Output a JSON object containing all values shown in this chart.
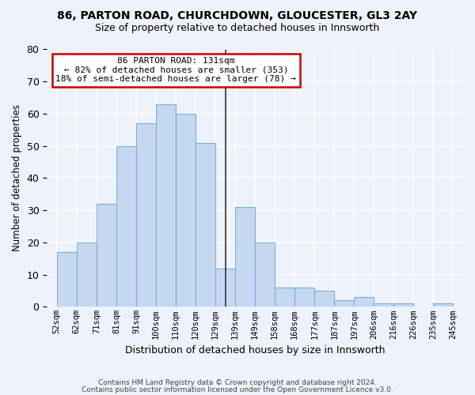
{
  "title_line1": "86, PARTON ROAD, CHURCHDOWN, GLOUCESTER, GL3 2AY",
  "title_line2": "Size of property relative to detached houses in Innsworth",
  "xlabel": "Distribution of detached houses by size in Innsworth",
  "ylabel": "Number of detached properties",
  "tick_labels": [
    "52sqm",
    "62sqm",
    "71sqm",
    "81sqm",
    "91sqm",
    "100sqm",
    "110sqm",
    "120sqm",
    "129sqm",
    "139sqm",
    "149sqm",
    "158sqm",
    "168sqm",
    "177sqm",
    "187sqm",
    "197sqm",
    "206sqm",
    "216sqm",
    "226sqm",
    "235sqm",
    "245sqm"
  ],
  "bar_heights": [
    17,
    20,
    32,
    50,
    57,
    63,
    60,
    51,
    12,
    31,
    20,
    6,
    6,
    5,
    2,
    3,
    1,
    1,
    0,
    1
  ],
  "bar_color": "#c5d8f0",
  "bar_edge_color": "#7ab0d8",
  "vline_color": "#333333",
  "annotation_text": "86 PARTON ROAD: 131sqm\n← 82% of detached houses are smaller (353)\n18% of semi-detached houses are larger (78) →",
  "annotation_box_color": "#ffffff",
  "annotation_box_edge": "#cc0000",
  "ylim": [
    0,
    80
  ],
  "yticks": [
    0,
    10,
    20,
    30,
    40,
    50,
    60,
    70,
    80
  ],
  "bg_color": "#eef2fa",
  "grid_color": "#ffffff",
  "footer_line1": "Contains HM Land Registry data © Crown copyright and database right 2024.",
  "footer_line2": "Contains public sector information licensed under the Open Government Licence v3.0."
}
